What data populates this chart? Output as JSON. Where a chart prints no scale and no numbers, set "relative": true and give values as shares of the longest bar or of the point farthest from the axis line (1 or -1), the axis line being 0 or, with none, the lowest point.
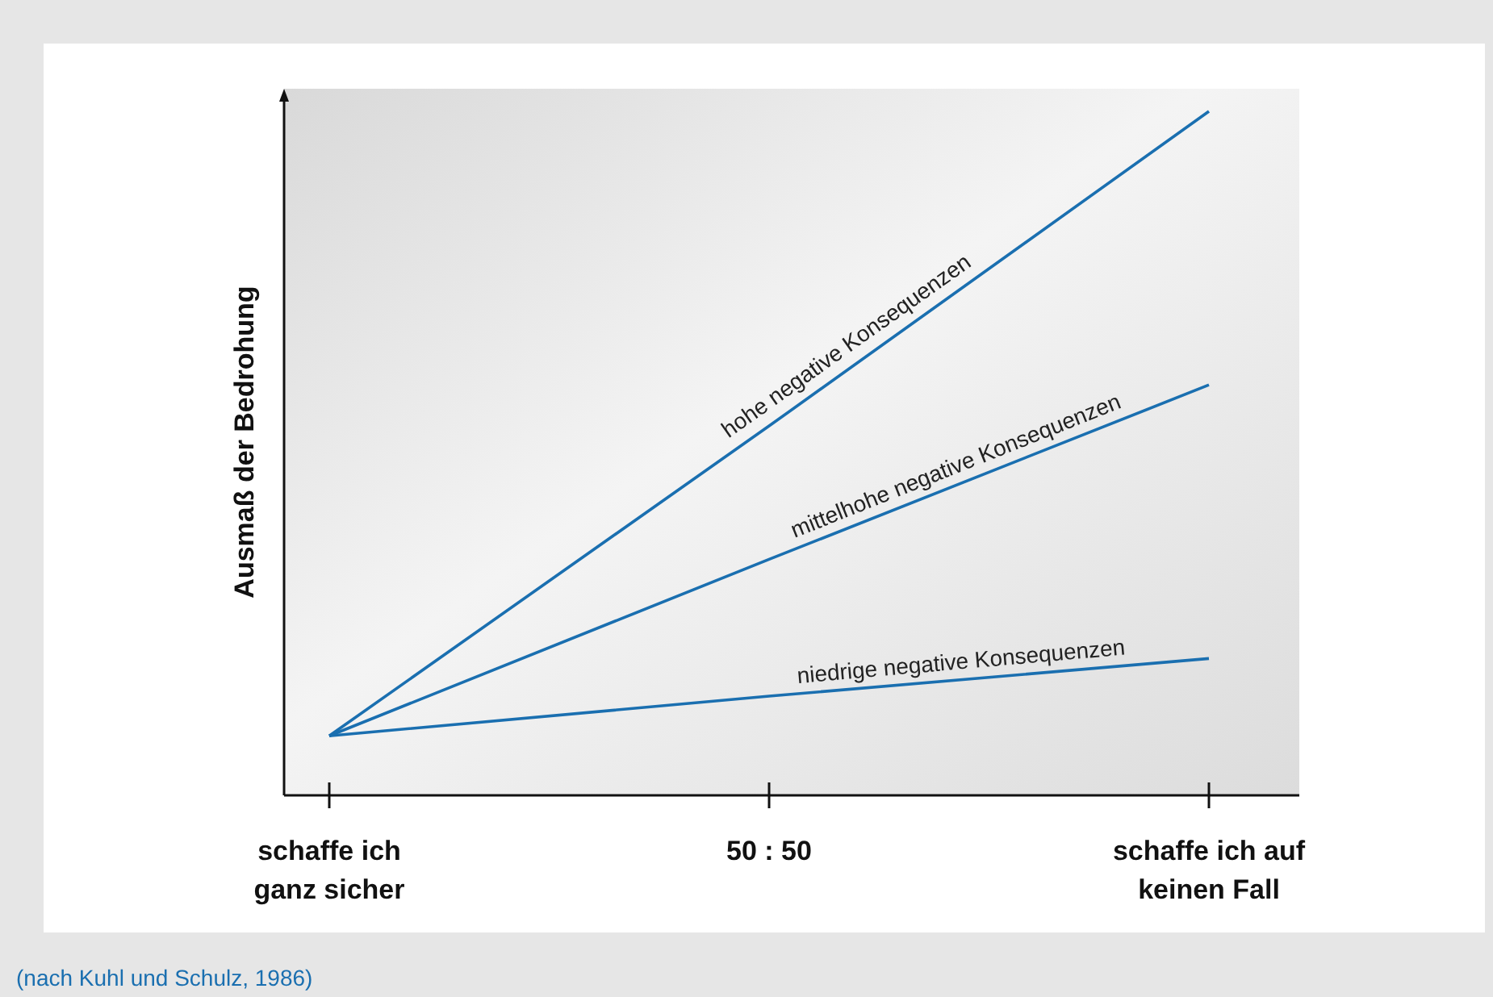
{
  "chart_data": {
    "type": "line",
    "relative": true,
    "ylabel": "Ausmaß der Bedrohung",
    "categories": [
      "schaffe ich\nganz sicher",
      "50 : 50",
      "schaffe ich auf\nkeinen Fall"
    ],
    "series": [
      {
        "name": "hohe negative Konsequenzen",
        "color": "#1a6fb0",
        "values": [
          0.087,
          0.54,
          1
        ]
      },
      {
        "name": "mittelhohe negative Konsequenzen",
        "color": "#1a6fb0",
        "values": [
          0.087,
          0.345,
          0.6
        ]
      },
      {
        "name": "niedrige negative Konsequenzen",
        "color": "#1a6fb0",
        "values": [
          0.087,
          0.145,
          0.2
        ]
      }
    ],
    "marker": "none",
    "line_style": "solid",
    "annotations": [
      "(nach Kuhl und Schulz, 1986)"
    ]
  }
}
